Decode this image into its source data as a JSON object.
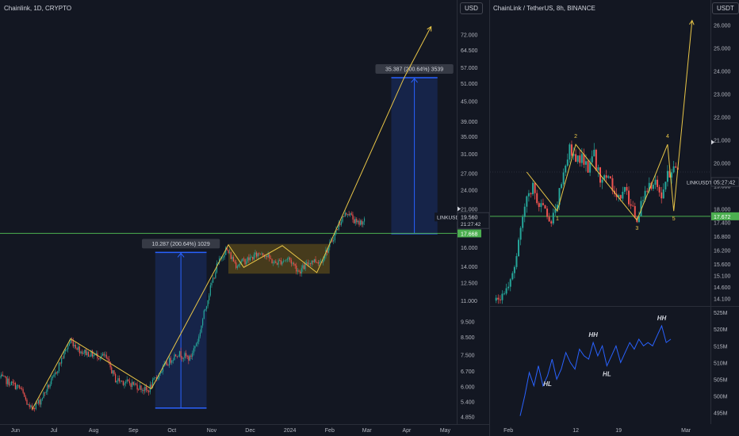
{
  "left": {
    "title": "Chainlink, 1D, CRYPTO",
    "currency": "USD",
    "chart_data": {
      "type": "candlestick",
      "title": "Chainlink, 1D, CRYPTO",
      "x_tick_labels": [
        "Jun",
        "Jul",
        "Aug",
        "Sep",
        "Oct",
        "Nov",
        "Dec",
        "2024",
        "Feb",
        "Mar",
        "Apr",
        "May"
      ],
      "y_tick_labels": [
        "72.000",
        "64.500",
        "57.000",
        "51.000",
        "45.000",
        "39.000",
        "35.000",
        "31.000",
        "27.000",
        "24.000",
        "21.000",
        "19.560",
        "17.668",
        "16.000",
        "14.000",
        "12.500",
        "11.000",
        "9.500",
        "8.500",
        "7.500",
        "6.700",
        "6.000",
        "5.400",
        "4.850"
      ],
      "y_scale": "log",
      "ylim": [
        4.6,
        82
      ],
      "price_path": [
        [
          "2023-05-20",
          6.4
        ],
        [
          "2023-06-05",
          5.9
        ],
        [
          "2023-06-12",
          5.1
        ],
        [
          "2023-06-20",
          5.4
        ],
        [
          "2023-07-01",
          6.4
        ],
        [
          "2023-07-14",
          8.3
        ],
        [
          "2023-07-22",
          7.7
        ],
        [
          "2023-08-01",
          7.5
        ],
        [
          "2023-08-10",
          7.4
        ],
        [
          "2023-08-18",
          6.3
        ],
        [
          "2023-09-01",
          6.1
        ],
        [
          "2023-09-12",
          5.8
        ],
        [
          "2023-09-25",
          6.9
        ],
        [
          "2023-10-05",
          7.6
        ],
        [
          "2023-10-15",
          7.3
        ],
        [
          "2023-10-22",
          8.5
        ],
        [
          "2023-10-28",
          10.8
        ],
        [
          "2023-11-05",
          14.0
        ],
        [
          "2023-11-12",
          15.8
        ],
        [
          "2023-11-20",
          14.2
        ],
        [
          "2023-12-01",
          14.8
        ],
        [
          "2023-12-10",
          15.5
        ],
        [
          "2023-12-20",
          14.3
        ],
        [
          "2023-12-31",
          14.8
        ],
        [
          "2024-01-08",
          13.5
        ],
        [
          "2024-01-18",
          14.6
        ],
        [
          "2024-01-25",
          14.5
        ],
        [
          "2024-02-02",
          16.5
        ],
        [
          "2024-02-10",
          19.5
        ],
        [
          "2024-02-15",
          20.6
        ],
        [
          "2024-02-22",
          18.9
        ],
        [
          "2024-03-01",
          19.56
        ]
      ],
      "last_price": "19.560",
      "last_price_countdown": "21:27:42",
      "support_level": "17.668",
      "support_value": 17.668,
      "zigzag": [
        [
          "2023-06-14",
          5.1
        ],
        [
          "2023-07-14",
          8.4
        ],
        [
          "2023-09-15",
          5.9
        ],
        [
          "2023-11-14",
          16.3
        ],
        [
          "2023-11-26",
          13.9
        ],
        [
          "2023-12-26",
          16.2
        ],
        [
          "2024-01-22",
          13.4
        ],
        [
          "2024-03-30",
          53.0
        ],
        [
          "2024-04-20",
          76.0
        ]
      ],
      "range_box": {
        "from": "2023-11-14",
        "to": "2024-02-01",
        "low": 13.3,
        "high": 16.4
      },
      "measurements": [
        {
          "label": "10.287 (200.64%) 1029",
          "from": "2023-09-18",
          "to": "2023-10-28",
          "low": 5.15,
          "high": 15.45
        },
        {
          "label": "35.387 (200.64%) 3539",
          "from": "2024-03-20",
          "to": "2024-04-25",
          "low": 17.63,
          "high": 53.0
        }
      ]
    }
  },
  "right": {
    "title": "ChainLink / TetherUS, 8h, BINANCE",
    "currency": "USDT",
    "chart_data": {
      "type": "candlestick",
      "title": "ChainLink / TetherUS, 8h, BINANCE",
      "x_tick_labels": [
        "Feb",
        "12",
        "19",
        "Mar"
      ],
      "y_tick_labels": [
        "26.000",
        "25.000",
        "24.000",
        "23.000",
        "22.000",
        "21.000",
        "20.000",
        "19.000",
        "18.000",
        "17.400",
        "16.800",
        "16.200",
        "15.600",
        "15.100",
        "14.600",
        "14.100"
      ],
      "ylim": [
        13.8,
        26.4
      ],
      "price_path": [
        [
          "2024-01-30",
          14.0
        ],
        [
          "2024-02-01",
          14.6
        ],
        [
          "2024-02-02",
          15.6
        ],
        [
          "2024-02-03",
          17.2
        ],
        [
          "2024-02-04",
          18.3
        ],
        [
          "2024-02-05",
          19.0
        ],
        [
          "2024-02-06",
          18.2
        ],
        [
          "2024-02-07",
          17.9
        ],
        [
          "2024-02-08",
          17.6
        ],
        [
          "2024-02-09",
          18.3
        ],
        [
          "2024-02-10",
          19.3
        ],
        [
          "2024-02-11",
          20.6
        ],
        [
          "2024-02-12",
          20.0
        ],
        [
          "2024-02-13",
          20.3
        ],
        [
          "2024-02-14",
          19.6
        ],
        [
          "2024-02-15",
          20.3
        ],
        [
          "2024-02-16",
          19.3
        ],
        [
          "2024-02-17",
          19.6
        ],
        [
          "2024-02-18",
          18.8
        ],
        [
          "2024-02-19",
          18.4
        ],
        [
          "2024-02-20",
          18.9
        ],
        [
          "2024-02-21",
          18.0
        ],
        [
          "2024-02-22",
          17.6
        ],
        [
          "2024-02-23",
          18.5
        ],
        [
          "2024-02-24",
          18.9
        ],
        [
          "2024-02-25",
          19.1
        ],
        [
          "2024-02-26",
          18.7
        ],
        [
          "2024-02-27",
          19.4
        ],
        [
          "2024-02-28",
          19.6
        ]
      ],
      "last_price_label": "LINKUSDT",
      "last_price_countdown": "05:27:42",
      "support_level": "17.672",
      "support_value": 17.672,
      "wave_points": [
        {
          "label": "",
          "date": "2024-02-04",
          "value": 19.6
        },
        {
          "label": "1",
          "date": "2024-02-09",
          "value": 17.9
        },
        {
          "label": "2",
          "date": "2024-02-12",
          "value": 20.8
        },
        {
          "label": "3",
          "date": "2024-02-22",
          "value": 17.5
        },
        {
          "label": "4",
          "date": "2024-02-27",
          "value": 20.8
        },
        {
          "label": "5",
          "date": "2024-02-28",
          "value": 17.9
        },
        {
          "label": "",
          "date": "2024-03-02",
          "value": 26.2
        }
      ]
    },
    "indicator": {
      "chart_data": {
        "type": "line",
        "y_tick_labels": [
          "525M",
          "520M",
          "515M",
          "510M",
          "505M",
          "500M",
          "495M"
        ],
        "ylim": [
          492,
          526
        ],
        "values": [
          494,
          500,
          507,
          503,
          509,
          503,
          506,
          511,
          505,
          508,
          513,
          510,
          508,
          514,
          512,
          511,
          516,
          512,
          515,
          509,
          512,
          515,
          510,
          513,
          516,
          514,
          517,
          515,
          516,
          515,
          518,
          521,
          516,
          517
        ],
        "annotations": [
          {
            "label": "HL",
            "index": 6
          },
          {
            "label": "HH",
            "index": 16
          },
          {
            "label": "HL",
            "index": 19
          },
          {
            "label": "HH",
            "index": 31
          }
        ]
      }
    }
  }
}
